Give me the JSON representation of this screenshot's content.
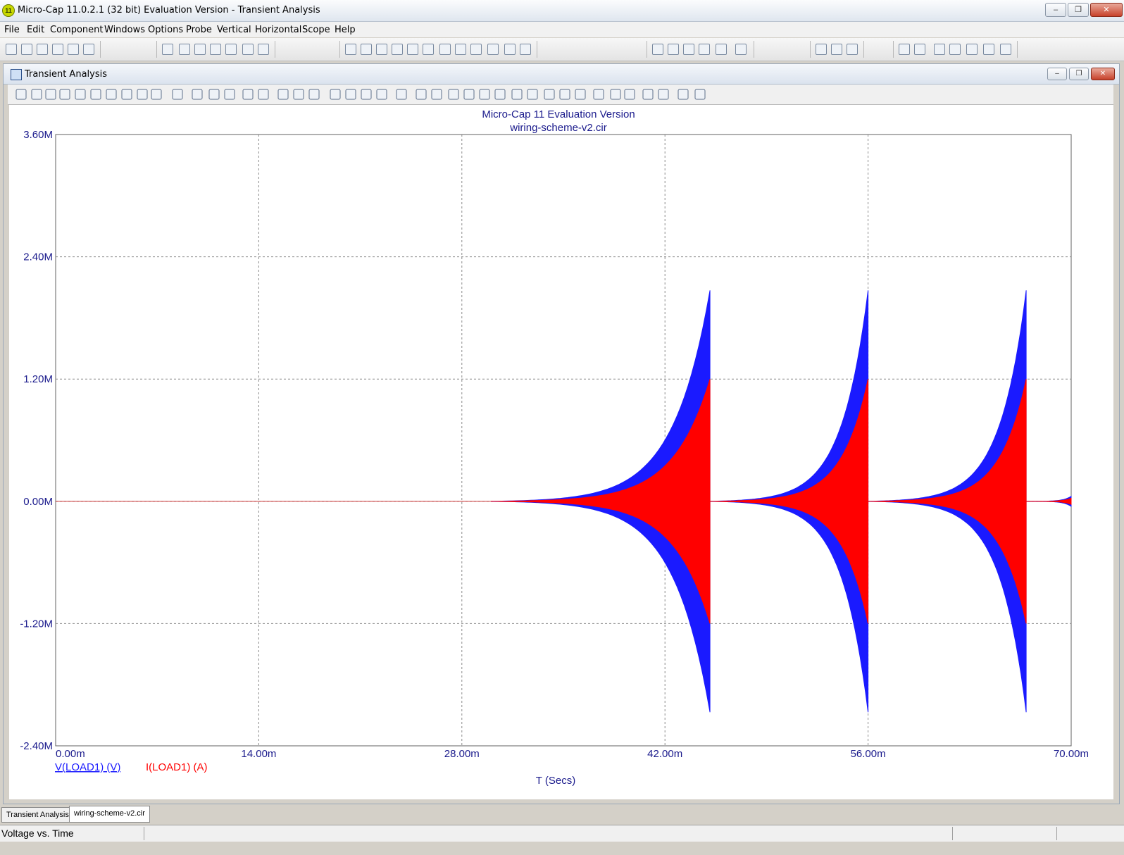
{
  "window": {
    "title": "Micro-Cap 11.0.2.1 (32 bit) Evaluation Version - Transient Analysis",
    "app_icon_text": "11"
  },
  "menu": [
    "File",
    "Edit",
    "Component",
    "Windows",
    "Options",
    "Probe",
    "Vertical",
    "Horizontal",
    "Scope",
    "Help"
  ],
  "child_window": {
    "title": "Transient Analysis"
  },
  "plot": {
    "title_line1": "Micro-Cap 11 Evaluation Version",
    "title_line2": "wiring-scheme-v2.cir",
    "x_axis_label": "T (Secs)",
    "legend": [
      {
        "label": "V(LOAD1) (V)",
        "color": "#1a1aff"
      },
      {
        "label": "I(LOAD1) (A)",
        "color": "#ff0000"
      }
    ],
    "text_color": "#1a1a8c"
  },
  "chart_data": {
    "type": "line",
    "title": "Micro-Cap 11 Evaluation Version",
    "subtitle": "wiring-scheme-v2.cir",
    "xlabel": "T (Secs)",
    "ylabel": "",
    "x_ticks": [
      "0.00m",
      "14.00m",
      "28.00m",
      "42.00m",
      "56.00m",
      "70.00m"
    ],
    "y_ticks": [
      "3.60M",
      "2.40M",
      "1.20M",
      "0.00M",
      "-1.20M",
      "-2.40M"
    ],
    "xlim_ms": [
      0,
      70
    ],
    "ylim_M": [
      -2.4,
      3.6
    ],
    "grid": true,
    "series": [
      {
        "name": "V(LOAD1) (V)",
        "color": "#1a1aff",
        "description_envelope": "Oscillating bursts with exponentially growing envelope, resetting at each end",
        "bursts": [
          {
            "start_ms": 30.0,
            "end_ms": 45.1,
            "peak_M": 2.07
          },
          {
            "start_ms": 45.1,
            "end_ms": 56.0,
            "peak_M": 2.07
          },
          {
            "start_ms": 56.0,
            "end_ms": 66.9,
            "peak_M": 2.07
          },
          {
            "start_ms": 66.9,
            "end_ms": 70.0,
            "peak_M": 0.05
          }
        ]
      },
      {
        "name": "I(LOAD1) (A)",
        "color": "#ff0000",
        "bursts": [
          {
            "start_ms": 30.0,
            "end_ms": 45.1,
            "peak_M": 1.2
          },
          {
            "start_ms": 45.1,
            "end_ms": 56.0,
            "peak_M": 1.2
          },
          {
            "start_ms": 56.0,
            "end_ms": 66.9,
            "peak_M": 1.2
          },
          {
            "start_ms": 66.9,
            "end_ms": 70.0,
            "peak_M": 0.03
          }
        ]
      }
    ]
  },
  "tabs": [
    "Transient Analysis",
    "wiring-scheme-v2.cir"
  ],
  "status": {
    "text": "Voltage vs. Time"
  }
}
